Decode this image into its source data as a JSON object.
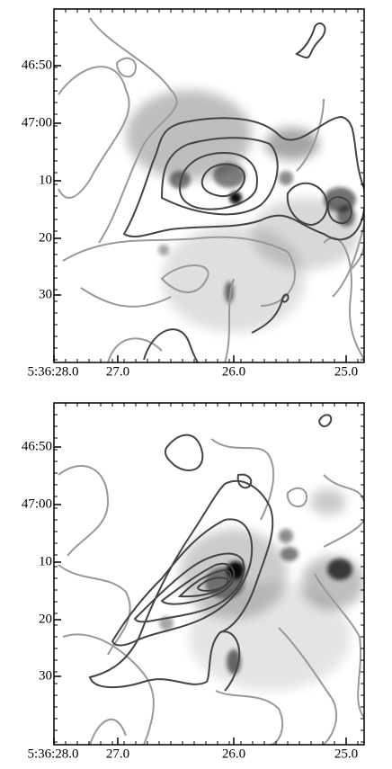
{
  "panels": [
    {
      "x_tick_labels": [
        "5:36:28.0",
        "27.0",
        "26.0",
        "25.0"
      ],
      "y_tick_labels": [
        "46:50",
        "47:00",
        "10",
        "20",
        "30"
      ]
    },
    {
      "x_tick_labels": [
        "5:36:28.0",
        "27.0",
        "26.0",
        "25.0"
      ],
      "y_tick_labels": [
        "46:50",
        "47:00",
        "10",
        "20",
        "30"
      ]
    }
  ]
}
